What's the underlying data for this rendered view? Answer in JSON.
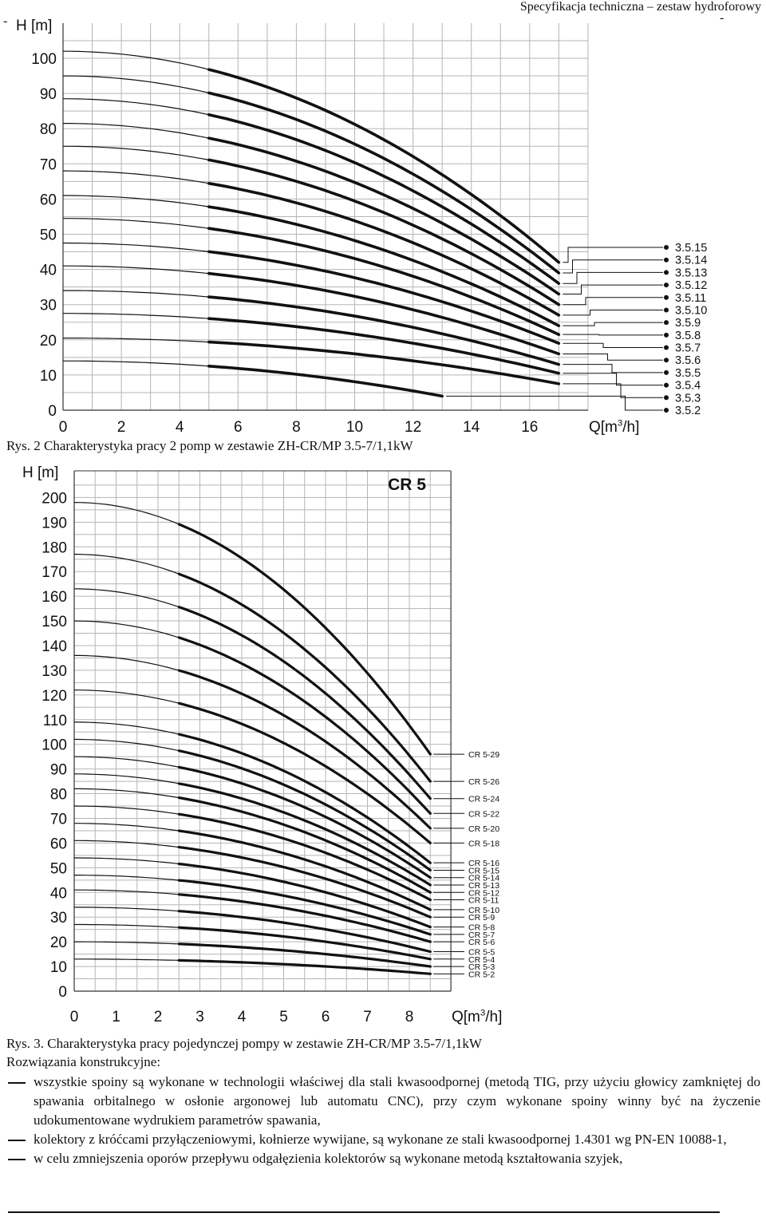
{
  "header": {
    "title": "Specyfikacja techniczna – zestaw hydroforowy",
    "dash_left": "-",
    "dash_right": "-"
  },
  "captions": {
    "fig2": "Rys. 2 Charakterystyka pracy 2 pomp w zestawie ZH-CR/MP 3.5-7/1,1kW",
    "fig3": "Rys. 3. Charakterystyka pracy pojedynczej pompy w zestawie ZH-CR/MP 3.5-7/1,1kW"
  },
  "section_title": "Rozwiązania konstrukcyjne:",
  "bullets": [
    "wszystkie spoiny są wykonane w technologii właściwej dla stali kwasoodpornej (metodą TIG, przy użyciu głowicy zamkniętej do spawania orbitalnego w osłonie argonowej lub automatu CNC), przy czym wykonane spoiny winny być na życzenie udokumentowane wydrukiem parametrów spawania,",
    "kolektory z króćcami przyłączeniowymi, kołnierze wywijane, są wykonane ze stali kwasoodpornej 1.4301 wg PN-EN 10088-1,",
    "w celu zmniejszenia oporów przepływu odgałęzienia kolektorów są wykonane metodą kształtowania szyjek,"
  ],
  "chart_data": [
    {
      "type": "line",
      "title": "",
      "xlabel": "Q[m³/h]",
      "ylabel": "H [m]",
      "xlim": [
        0,
        18
      ],
      "ylim": [
        0,
        105
      ],
      "xticks": [
        0,
        2,
        4,
        6,
        8,
        10,
        12,
        14,
        16
      ],
      "yticks": [
        0,
        10,
        20,
        30,
        40,
        50,
        60,
        70,
        80,
        90,
        100
      ],
      "grid": true,
      "legend_placement": "right",
      "x_thin_end": 5,
      "series": [
        {
          "name": "3.5.15",
          "shutoff_head": 102,
          "q_max": 17,
          "h_end": 42
        },
        {
          "name": "3.5.14",
          "shutoff_head": 95,
          "q_max": 17,
          "h_end": 39
        },
        {
          "name": "3.5.13",
          "shutoff_head": 88.5,
          "q_max": 17,
          "h_end": 36
        },
        {
          "name": "3.5.12",
          "shutoff_head": 81.5,
          "q_max": 17,
          "h_end": 33
        },
        {
          "name": "3.5.11",
          "shutoff_head": 75,
          "q_max": 17,
          "h_end": 30
        },
        {
          "name": "3.5.10",
          "shutoff_head": 68,
          "q_max": 17,
          "h_end": 27
        },
        {
          "name": "3.5.9",
          "shutoff_head": 61,
          "q_max": 17,
          "h_end": 24
        },
        {
          "name": "3.5.8",
          "shutoff_head": 54.5,
          "q_max": 17,
          "h_end": 21.5
        },
        {
          "name": "3.5.7",
          "shutoff_head": 47.5,
          "q_max": 17,
          "h_end": 19
        },
        {
          "name": "3.5.6",
          "shutoff_head": 41,
          "q_max": 17,
          "h_end": 16
        },
        {
          "name": "3.5.5",
          "shutoff_head": 34,
          "q_max": 17,
          "h_end": 13
        },
        {
          "name": "3.5.4",
          "shutoff_head": 27.5,
          "q_max": 17,
          "h_end": 10.5
        },
        {
          "name": "3.5.3",
          "shutoff_head": 20.5,
          "q_max": 17,
          "h_end": 7.5
        },
        {
          "name": "3.5.2",
          "shutoff_head": 14,
          "q_max": 13,
          "h_end": 4
        }
      ]
    },
    {
      "type": "line",
      "title": "CR 5",
      "xlabel": "Q[m³/h]",
      "ylabel": "H [m]",
      "xlim": [
        0,
        10.5
      ],
      "ylim": [
        0,
        205
      ],
      "xticks": [
        0,
        1,
        2,
        3,
        4,
        5,
        6,
        7,
        8
      ],
      "yticks": [
        0,
        10,
        20,
        30,
        40,
        50,
        60,
        70,
        80,
        90,
        100,
        110,
        120,
        130,
        140,
        150,
        160,
        170,
        180,
        190,
        200
      ],
      "grid": true,
      "legend_placement": "right",
      "x_thin_end": 2.5,
      "series": [
        {
          "name": "CR 5-29",
          "shutoff_head": 198,
          "q_max": 8.5,
          "h_end": 96
        },
        {
          "name": "CR 5-26",
          "shutoff_head": 177,
          "q_max": 8.5,
          "h_end": 85
        },
        {
          "name": "CR 5-24",
          "shutoff_head": 163,
          "q_max": 8.5,
          "h_end": 78
        },
        {
          "name": "CR 5-22",
          "shutoff_head": 150,
          "q_max": 8.5,
          "h_end": 72
        },
        {
          "name": "CR 5-20",
          "shutoff_head": 136,
          "q_max": 8.5,
          "h_end": 66
        },
        {
          "name": "CR 5-18",
          "shutoff_head": 122,
          "q_max": 8.5,
          "h_end": 60
        },
        {
          "name": "CR 5-16",
          "shutoff_head": 109,
          "q_max": 8.5,
          "h_end": 52
        },
        {
          "name": "CR 5-15",
          "shutoff_head": 102,
          "q_max": 8.5,
          "h_end": 49
        },
        {
          "name": "CR 5-14",
          "shutoff_head": 95,
          "q_max": 8.5,
          "h_end": 46
        },
        {
          "name": "CR 5-13",
          "shutoff_head": 88,
          "q_max": 8.5,
          "h_end": 43
        },
        {
          "name": "CR 5-12",
          "shutoff_head": 82,
          "q_max": 8.5,
          "h_end": 40
        },
        {
          "name": "CR 5-11",
          "shutoff_head": 75,
          "q_max": 8.5,
          "h_end": 37
        },
        {
          "name": "CR 5-10",
          "shutoff_head": 68,
          "q_max": 8.5,
          "h_end": 33
        },
        {
          "name": "CR 5-9",
          "shutoff_head": 61,
          "q_max": 8.5,
          "h_end": 30
        },
        {
          "name": "CR 5-8",
          "shutoff_head": 54,
          "q_max": 8.5,
          "h_end": 26
        },
        {
          "name": "CR 5-7",
          "shutoff_head": 47,
          "q_max": 8.5,
          "h_end": 23
        },
        {
          "name": "CR 5-6",
          "shutoff_head": 41,
          "q_max": 8.5,
          "h_end": 20
        },
        {
          "name": "CR 5-5",
          "shutoff_head": 34,
          "q_max": 8.5,
          "h_end": 16
        },
        {
          "name": "CR 5-4",
          "shutoff_head": 27,
          "q_max": 8.5,
          "h_end": 13
        },
        {
          "name": "CR 5-3",
          "shutoff_head": 20,
          "q_max": 8.5,
          "h_end": 10
        },
        {
          "name": "CR 5-2",
          "shutoff_head": 13,
          "q_max": 8.5,
          "h_end": 7
        }
      ]
    }
  ]
}
